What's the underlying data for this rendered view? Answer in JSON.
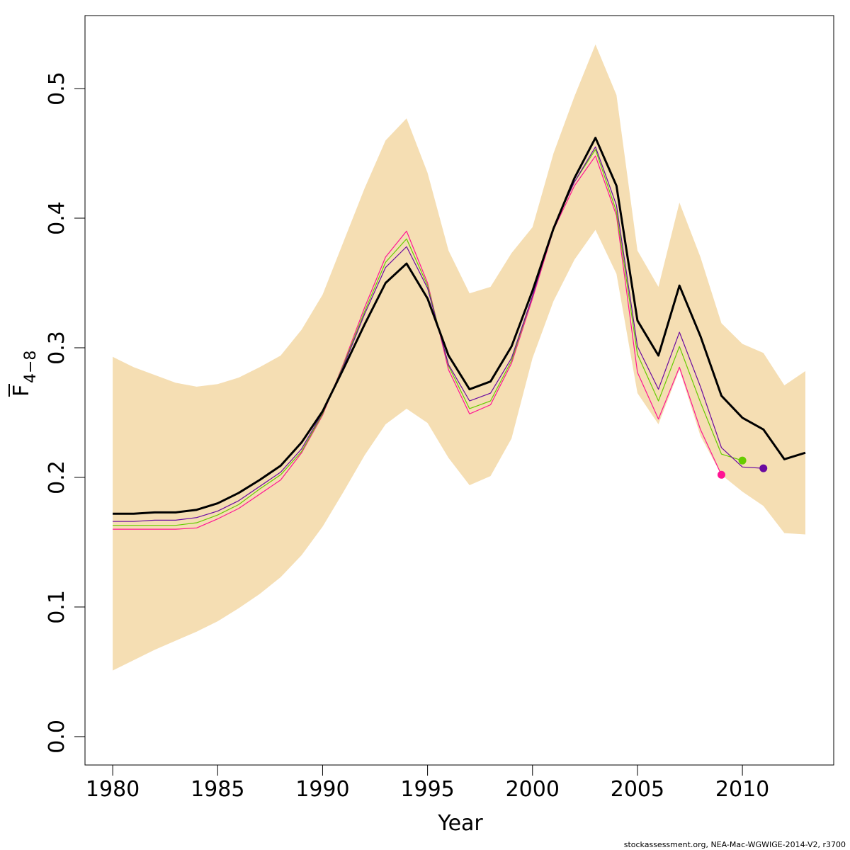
{
  "chart_data": {
    "type": "line",
    "xlabel": "Year",
    "ylabel": "F",
    "ylabel_subscript": "4−8",
    "footer": "stockassessment.org, NEA-Mac-WGWIGE-2014-V2, r3700",
    "x": [
      1980,
      1981,
      1982,
      1983,
      1984,
      1985,
      1986,
      1987,
      1988,
      1989,
      1990,
      1991,
      1992,
      1993,
      1994,
      1995,
      1996,
      1997,
      1998,
      1999,
      2000,
      2001,
      2002,
      2003,
      2004,
      2005,
      2006,
      2007,
      2008,
      2009,
      2010,
      2011,
      2012,
      2013
    ],
    "band": {
      "color": "#f5deb3",
      "upper": [
        0.293,
        0.285,
        0.279,
        0.273,
        0.27,
        0.272,
        0.277,
        0.285,
        0.294,
        0.314,
        0.341,
        0.382,
        0.423,
        0.46,
        0.477,
        0.435,
        0.375,
        0.342,
        0.347,
        0.373,
        0.393,
        0.45,
        0.494,
        0.534,
        0.495,
        0.375,
        0.347,
        0.412,
        0.37,
        0.319,
        0.303,
        0.296,
        0.271,
        0.282
      ],
      "lower": [
        0.051,
        0.059,
        0.067,
        0.074,
        0.081,
        0.089,
        0.099,
        0.11,
        0.123,
        0.14,
        0.162,
        0.189,
        0.217,
        0.241,
        0.253,
        0.242,
        0.215,
        0.194,
        0.201,
        0.23,
        0.292,
        0.336,
        0.368,
        0.391,
        0.357,
        0.265,
        0.241,
        0.283,
        0.232,
        0.202,
        0.189,
        0.178,
        0.157,
        0.156
      ]
    },
    "series": [
      {
        "color": "#ff1493",
        "end_point": true,
        "width": 1.2,
        "values": [
          0.16,
          0.16,
          0.16,
          0.16,
          0.161,
          0.168,
          0.176,
          0.187,
          0.198,
          0.219,
          0.248,
          0.288,
          0.331,
          0.37,
          0.39,
          0.35,
          0.283,
          0.249,
          0.256,
          0.288,
          0.338,
          0.391,
          0.425,
          0.448,
          0.402,
          0.281,
          0.245,
          0.285,
          0.237,
          0.202,
          null,
          null,
          null,
          null
        ]
      },
      {
        "color": "#66cc00",
        "end_point": true,
        "width": 1.2,
        "values": [
          0.163,
          0.163,
          0.163,
          0.163,
          0.165,
          0.171,
          0.179,
          0.191,
          0.202,
          0.22,
          0.249,
          0.287,
          0.328,
          0.366,
          0.384,
          0.348,
          0.286,
          0.253,
          0.259,
          0.29,
          0.34,
          0.393,
          0.428,
          0.453,
          0.405,
          0.295,
          0.259,
          0.301,
          0.258,
          0.218,
          0.213,
          null,
          null,
          null
        ]
      },
      {
        "color": "#6a0aa0",
        "end_point": true,
        "width": 1.2,
        "values": [
          0.166,
          0.166,
          0.167,
          0.167,
          0.169,
          0.174,
          0.182,
          0.193,
          0.204,
          0.222,
          0.25,
          0.286,
          0.326,
          0.362,
          0.378,
          0.346,
          0.287,
          0.259,
          0.265,
          0.292,
          0.34,
          0.393,
          0.428,
          0.455,
          0.41,
          0.301,
          0.268,
          0.312,
          0.27,
          0.223,
          0.208,
          0.207,
          null,
          null
        ]
      },
      {
        "color": "#000000",
        "end_point": false,
        "width": 3,
        "values": [
          0.172,
          0.172,
          0.173,
          0.173,
          0.175,
          0.18,
          0.188,
          0.198,
          0.209,
          0.227,
          0.251,
          0.284,
          0.318,
          0.35,
          0.365,
          0.338,
          0.294,
          0.268,
          0.274,
          0.301,
          0.344,
          0.392,
          0.431,
          0.462,
          0.425,
          0.321,
          0.294,
          0.348,
          0.309,
          0.263,
          0.246,
          0.237,
          0.214,
          0.219
        ]
      }
    ],
    "xlim": [
      1978.68,
      2014.35
    ],
    "ylim": [
      -0.0219,
      0.5563
    ],
    "xticks": [
      1980,
      1985,
      1990,
      1995,
      2000,
      2005,
      2010
    ],
    "yticks": [
      {
        "value": 0,
        "label": "0.0"
      },
      0.1,
      0.2,
      0.3,
      0.4,
      0.5
    ]
  }
}
